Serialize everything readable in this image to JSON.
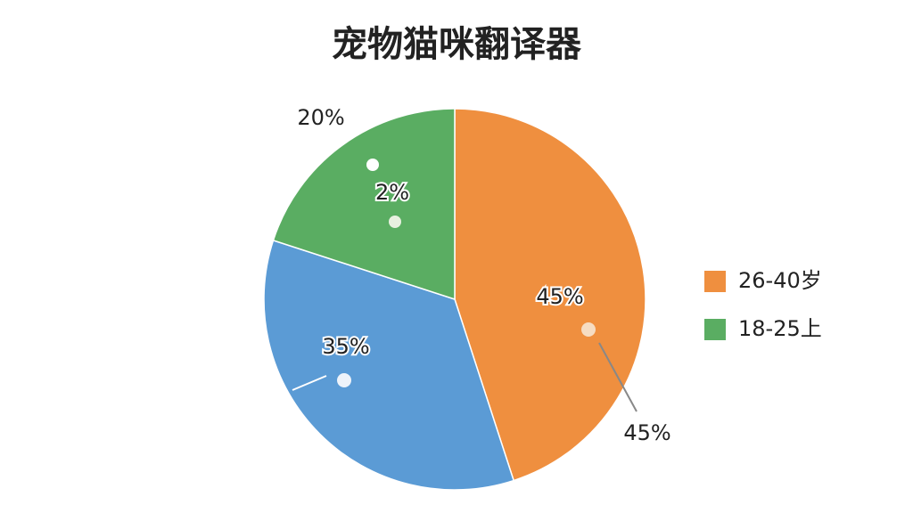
{
  "chart_data": {
    "type": "pie",
    "title": "宠物猫咪翻译器",
    "categories": [
      "26-40岁",
      null,
      "18-25上"
    ],
    "values": [
      45,
      35,
      20
    ],
    "value_labels": [
      "45%",
      "35%",
      "20%"
    ],
    "colors": [
      "#ef8f3f",
      "#5b9bd5",
      "#5aad62"
    ],
    "annotations": [
      "2%",
      "45%"
    ],
    "legend": "right"
  }
}
